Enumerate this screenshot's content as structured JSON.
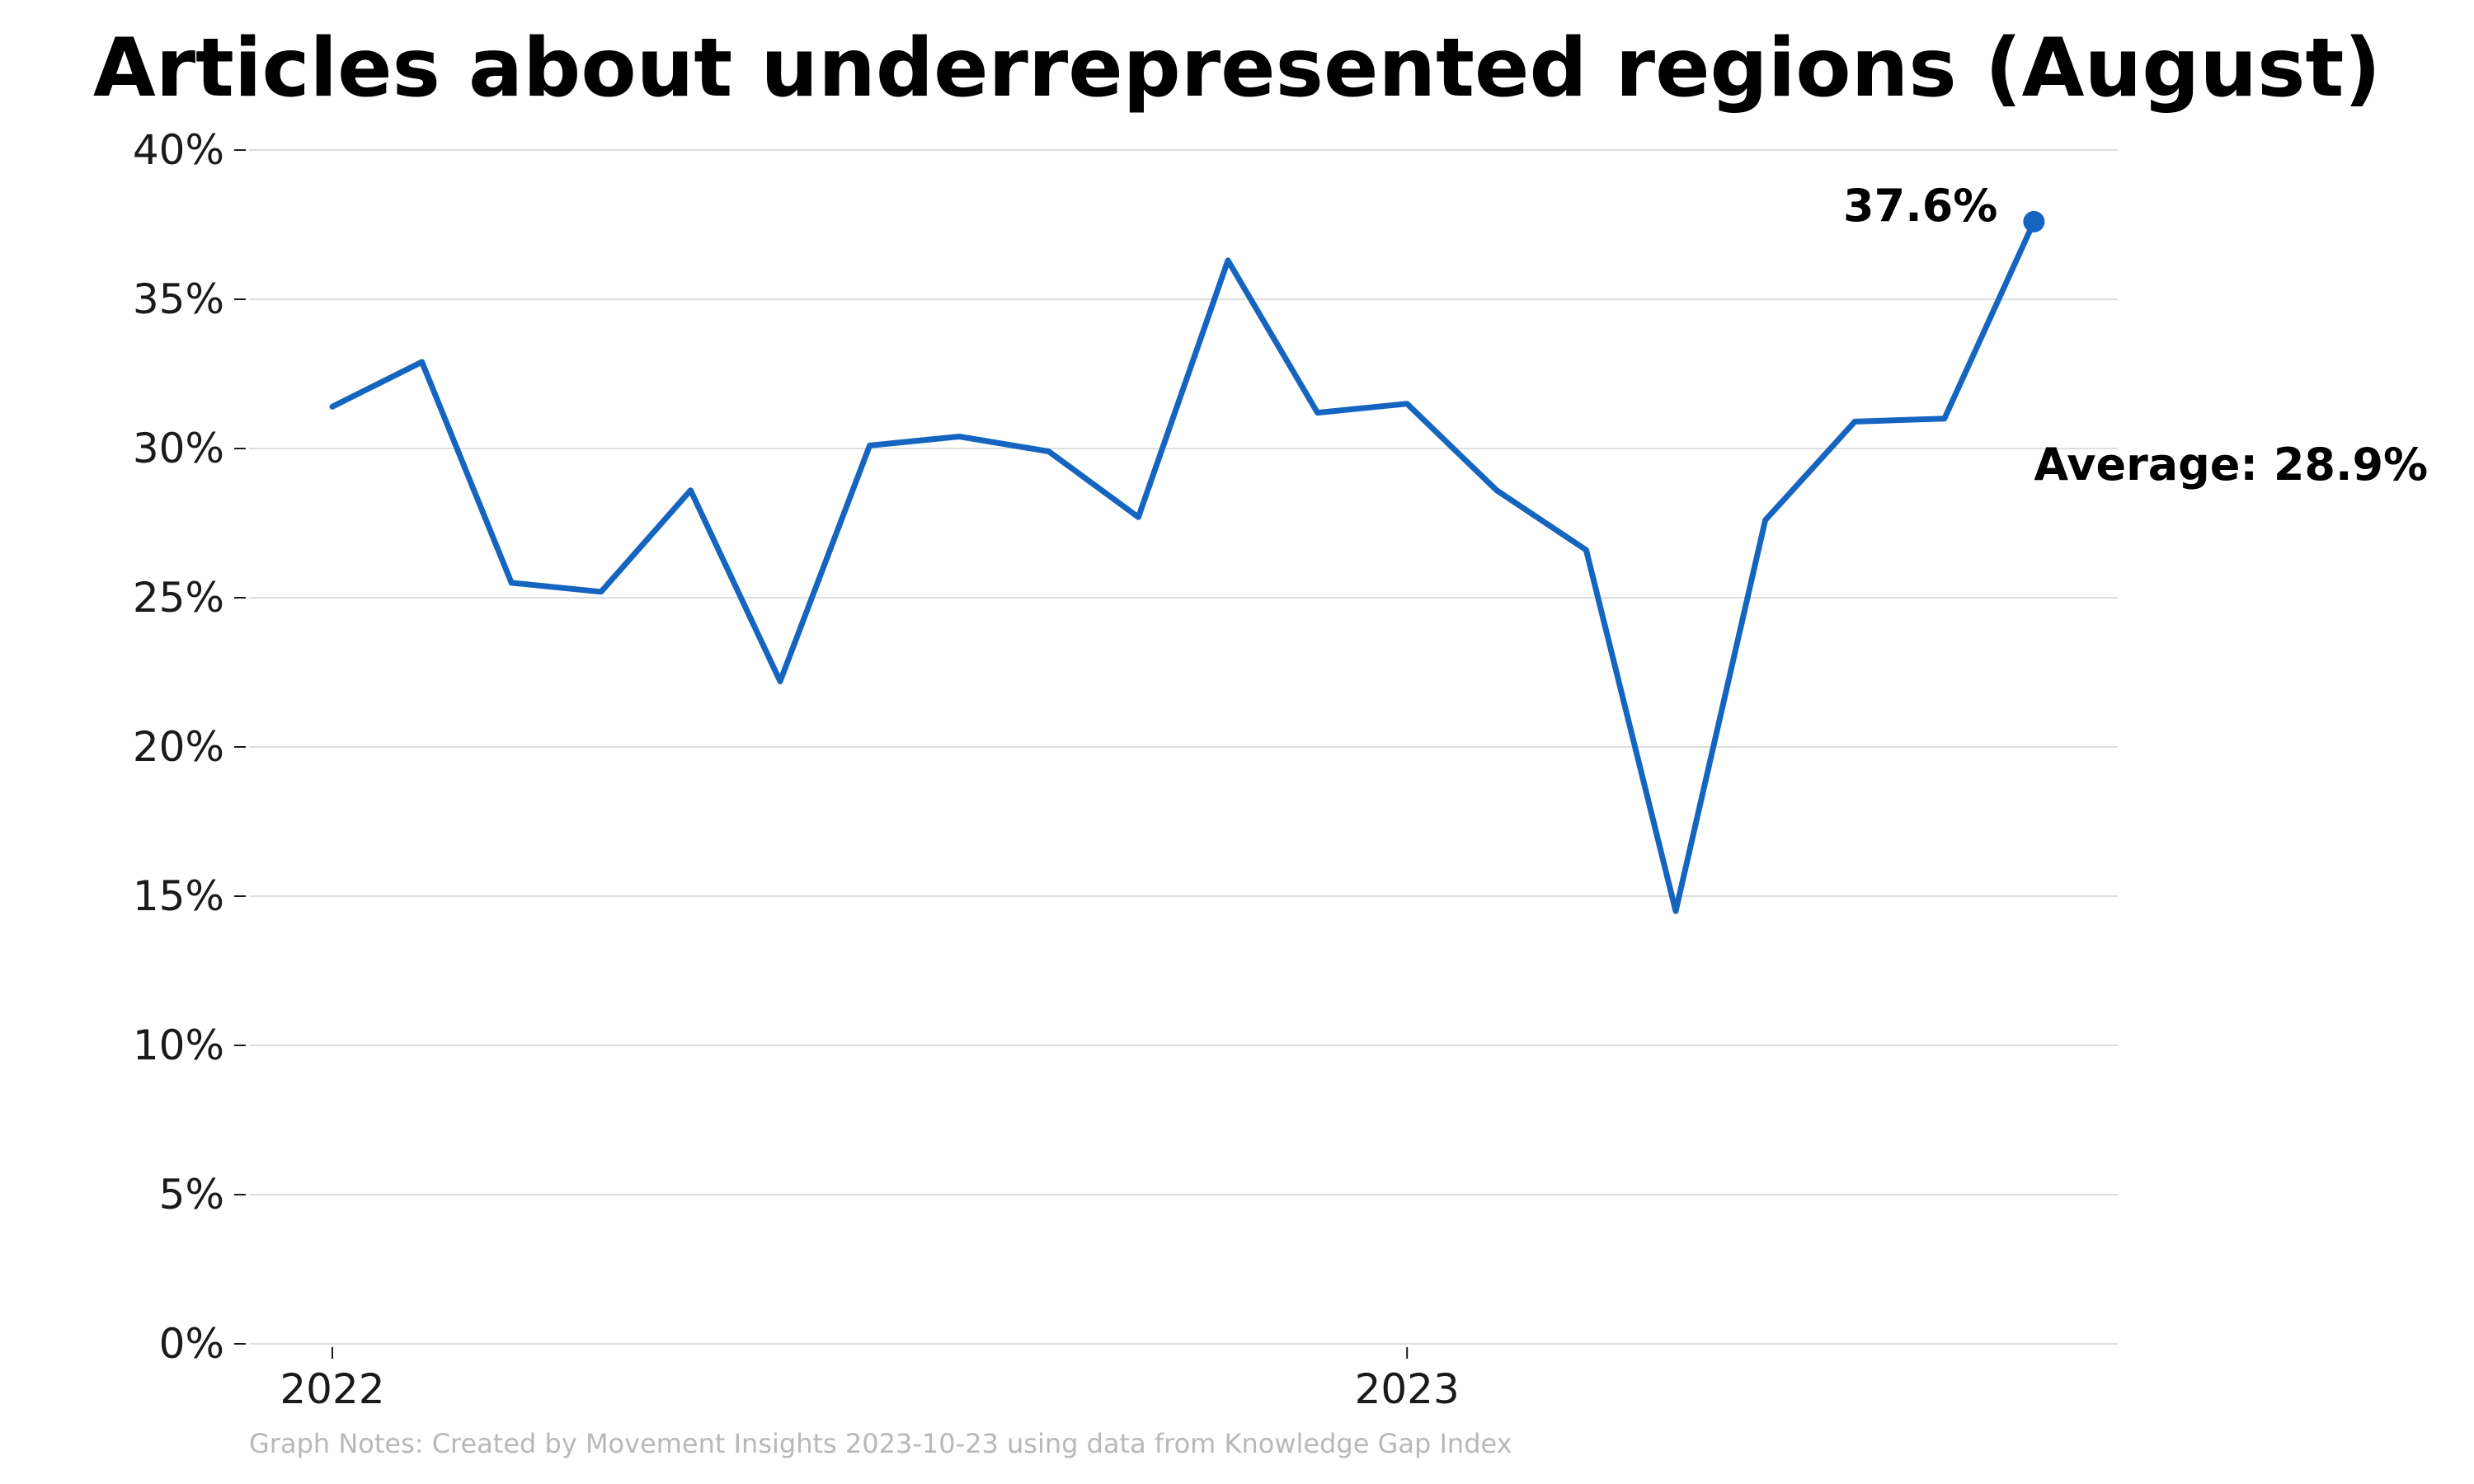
{
  "chart_data": {
    "type": "line",
    "title": "Articles about underrepresented regions (August)",
    "xlabel": "",
    "ylabel": "",
    "ylim": [
      0,
      40
    ],
    "y_ticks": [
      {
        "value": 0,
        "label": "0%"
      },
      {
        "value": 5,
        "label": "5%"
      },
      {
        "value": 10,
        "label": "10%"
      },
      {
        "value": 15,
        "label": "15%"
      },
      {
        "value": 20,
        "label": "20%"
      },
      {
        "value": 25,
        "label": "25%"
      },
      {
        "value": 30,
        "label": "30%"
      },
      {
        "value": 35,
        "label": "35%"
      },
      {
        "value": 40,
        "label": "40%"
      }
    ],
    "x_ticks": [
      {
        "value": "2022-01",
        "label": "2022"
      },
      {
        "value": "2023-01",
        "label": "2023"
      }
    ],
    "grid": true,
    "series": [
      {
        "color": "#1565c0",
        "points": [
          {
            "x": "2022-01",
            "y": 31.4
          },
          {
            "x": "2022-02",
            "y": 32.9
          },
          {
            "x": "2022-03",
            "y": 25.5
          },
          {
            "x": "2022-04",
            "y": 25.2
          },
          {
            "x": "2022-05",
            "y": 28.6
          },
          {
            "x": "2022-06",
            "y": 22.2
          },
          {
            "x": "2022-07",
            "y": 30.1
          },
          {
            "x": "2022-08",
            "y": 30.4
          },
          {
            "x": "2022-09",
            "y": 29.9
          },
          {
            "x": "2022-10",
            "y": 27.7
          },
          {
            "x": "2022-11",
            "y": 36.3
          },
          {
            "x": "2022-12",
            "y": 31.2
          },
          {
            "x": "2023-01",
            "y": 31.5
          },
          {
            "x": "2023-02",
            "y": 28.6
          },
          {
            "x": "2023-03",
            "y": 26.6
          },
          {
            "x": "2023-04",
            "y": 14.5
          },
          {
            "x": "2023-05",
            "y": 27.6
          },
          {
            "x": "2023-06",
            "y": 30.9
          },
          {
            "x": "2023-07",
            "y": 31.0
          },
          {
            "x": "2023-08",
            "y": 37.6
          }
        ]
      }
    ],
    "annotations": {
      "last_value": "37.6%",
      "average": "Average: 28.9%"
    },
    "notes": "Graph Notes: Created by Movement Insights 2023-10-23 using data from Knowledge Gap Index"
  }
}
